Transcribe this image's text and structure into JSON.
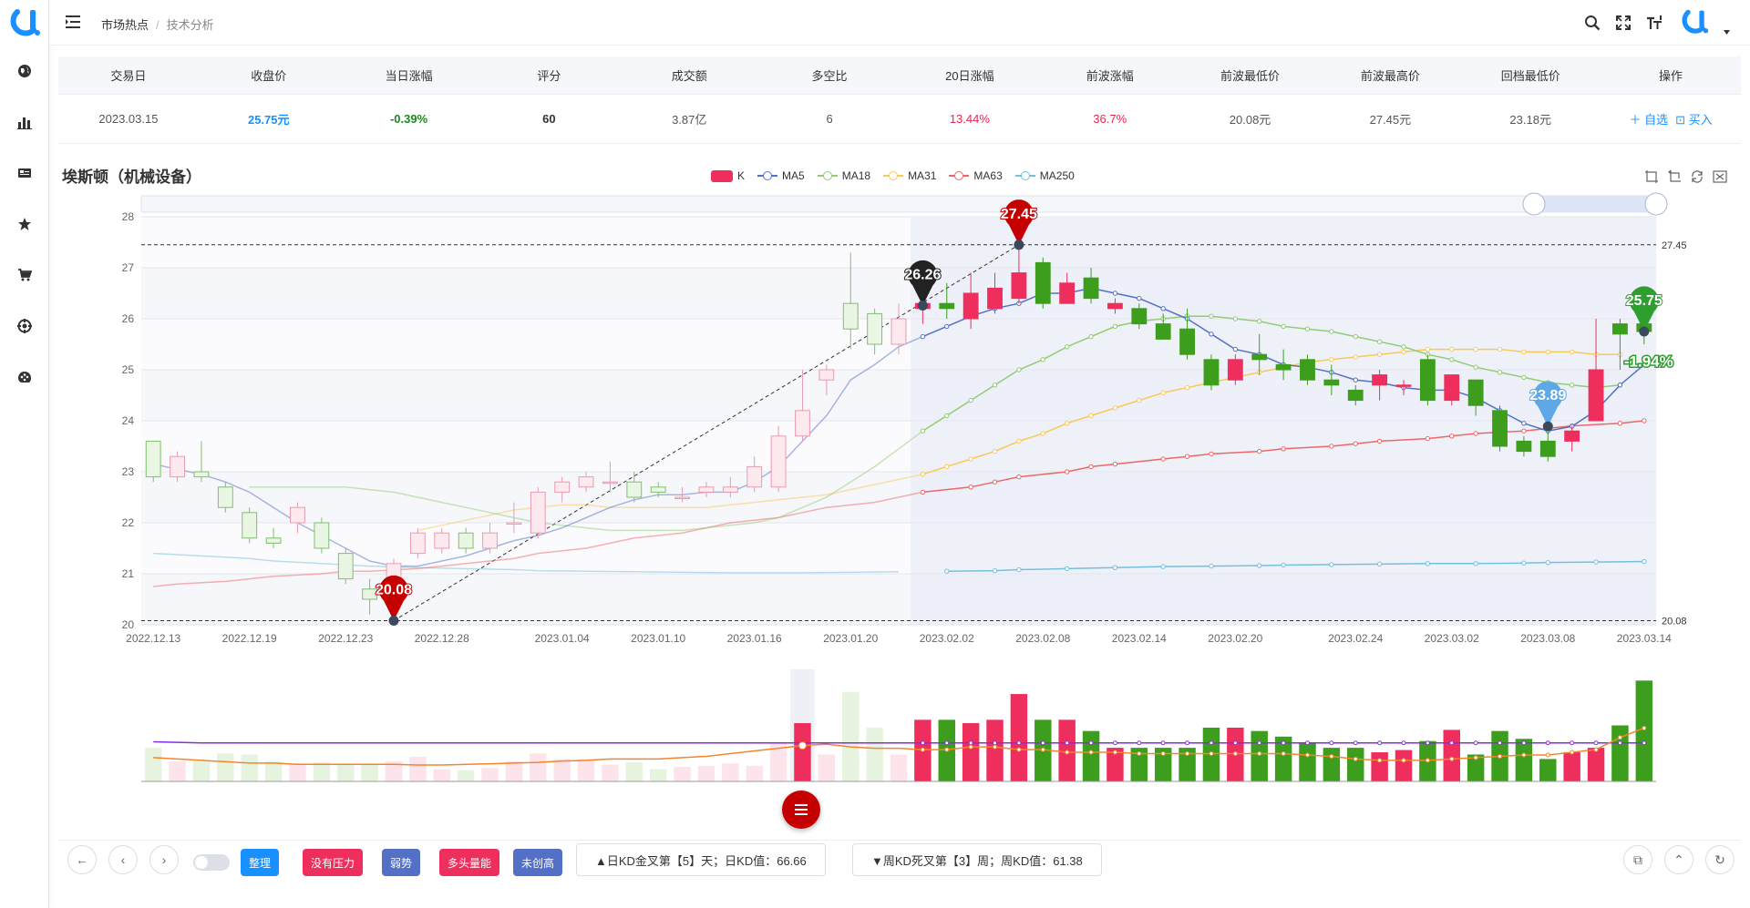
{
  "nav": {
    "breadcrumb_home": "市场热点",
    "breadcrumb_sep": "/",
    "breadcrumb_current": "技术分析",
    "sidebar_icons": [
      "globe-icon",
      "bar-chart-icon",
      "image-icon",
      "star-icon",
      "cart-icon",
      "target-icon",
      "palette-icon"
    ],
    "top_icons": [
      "search-icon",
      "fullscreen-icon",
      "font-size-icon",
      "user-logo-icon"
    ]
  },
  "summary": {
    "headers": [
      "交易日",
      "收盘价",
      "当日涨幅",
      "评分",
      "成交额",
      "多空比",
      "20日涨幅",
      "前波涨幅",
      "前波最低价",
      "前波最高价",
      "回档最低价",
      "操作"
    ],
    "row": [
      "2023.03.15",
      "25.75元",
      "-0.39%",
      "60",
      "3.87亿",
      "6",
      "13.44%",
      "36.7%",
      "20.08元",
      "27.45元",
      "23.18元"
    ],
    "action_add": "＋ 自选",
    "action_buy": "买入"
  },
  "chart_title": "埃斯顿（机械设备）",
  "legend": [
    {
      "name": "K",
      "color": "#ee2e5d"
    },
    {
      "name": "MA5",
      "color": "#5470c6"
    },
    {
      "name": "MA18",
      "color": "#91cc75"
    },
    {
      "name": "MA31",
      "color": "#fac858"
    },
    {
      "name": "MA63",
      "color": "#ee6666"
    },
    {
      "name": "MA250",
      "color": "#73c0de"
    }
  ],
  "chart_data": {
    "type": "candlestick",
    "ylim": [
      20,
      28
    ],
    "y_ticks": [
      "20",
      "21",
      "22",
      "23",
      "24",
      "25",
      "26",
      "27",
      "28"
    ],
    "x_tick_labels": [
      "2022.12.13",
      "2022.12.19",
      "2022.12.23",
      "2022.12.28",
      "2023.01.04",
      "2023.01.10",
      "2023.01.16",
      "2023.01.20",
      "2023.02.02",
      "2023.02.08",
      "2023.02.14",
      "2023.02.20",
      "2023.02.24",
      "2023.03.02",
      "2023.03.08",
      "2023.03.14"
    ],
    "high_line": "27.45",
    "low_line": "20.08",
    "markers": [
      {
        "label": "27.45",
        "index": 36,
        "value": 27.45,
        "color": "#c40000"
      },
      {
        "label": "26.26",
        "index": 32,
        "value": 26.26,
        "color": "#222222"
      },
      {
        "label": "20.08",
        "index": 10,
        "value": 20.08,
        "color": "#c40000"
      },
      {
        "label": "23.89",
        "index": 58,
        "value": 23.89,
        "color": "#5fa8e8"
      },
      {
        "label": "25.75",
        "index": 62,
        "value": 25.75,
        "color": "#2e9e2e"
      },
      {
        "label": "-1.94%",
        "index": 62,
        "value": 25.15,
        "color": "#2e9e2e"
      }
    ],
    "candles": [
      [
        23.6,
        22.9,
        23.6,
        22.8
      ],
      [
        22.9,
        23.3,
        23.4,
        22.8
      ],
      [
        23.0,
        22.9,
        23.6,
        22.8
      ],
      [
        22.7,
        22.3,
        22.8,
        22.2
      ],
      [
        22.2,
        21.7,
        22.3,
        21.6
      ],
      [
        21.7,
        21.6,
        21.9,
        21.5
      ],
      [
        22.0,
        22.3,
        22.4,
        21.8
      ],
      [
        22.0,
        21.5,
        22.1,
        21.4
      ],
      [
        21.4,
        20.9,
        21.5,
        20.8
      ],
      [
        20.7,
        20.5,
        20.9,
        20.2
      ],
      [
        20.6,
        21.2,
        21.3,
        20.1
      ],
      [
        21.4,
        21.8,
        21.9,
        21.3
      ],
      [
        21.5,
        21.8,
        21.9,
        21.4
      ],
      [
        21.8,
        21.5,
        21.9,
        21.4
      ],
      [
        21.5,
        21.8,
        22.0,
        21.4
      ],
      [
        22.0,
        22.0,
        22.4,
        21.8
      ],
      [
        21.8,
        22.6,
        22.7,
        21.7
      ],
      [
        22.6,
        22.8,
        22.9,
        22.4
      ],
      [
        22.7,
        22.9,
        23.0,
        22.6
      ],
      [
        22.8,
        22.8,
        23.2,
        22.6
      ],
      [
        22.8,
        22.5,
        23.0,
        22.4
      ],
      [
        22.7,
        22.6,
        22.8,
        22.5
      ],
      [
        22.5,
        22.5,
        22.7,
        22.4
      ],
      [
        22.6,
        22.7,
        22.8,
        22.5
      ],
      [
        22.6,
        22.7,
        22.9,
        22.5
      ],
      [
        22.7,
        23.1,
        23.3,
        22.6
      ],
      [
        22.7,
        23.7,
        23.9,
        22.6
      ],
      [
        23.7,
        24.2,
        25.0,
        23.6
      ],
      [
        24.8,
        25.0,
        25.1,
        24.5
      ],
      [
        26.3,
        25.8,
        27.3,
        25.4
      ],
      [
        26.1,
        25.5,
        26.2,
        25.3
      ],
      [
        25.5,
        26.0,
        26.3,
        25.3
      ],
      [
        26.2,
        26.3,
        26.7,
        25.9
      ],
      [
        26.3,
        26.2,
        26.7,
        26.0
      ],
      [
        26.0,
        26.5,
        26.9,
        25.8
      ],
      [
        26.2,
        26.6,
        26.9,
        26.1
      ],
      [
        26.4,
        26.9,
        27.45,
        26.3
      ],
      [
        27.1,
        26.3,
        27.2,
        26.2
      ],
      [
        26.3,
        26.7,
        26.9,
        26.3
      ],
      [
        26.8,
        26.4,
        27.0,
        26.3
      ],
      [
        26.2,
        26.3,
        26.4,
        26.1
      ],
      [
        26.2,
        25.9,
        26.3,
        25.8
      ],
      [
        25.9,
        25.6,
        26.1,
        25.6
      ],
      [
        25.8,
        25.3,
        26.2,
        25.2
      ],
      [
        25.2,
        24.7,
        25.3,
        24.6
      ],
      [
        24.8,
        25.2,
        25.3,
        24.7
      ],
      [
        25.3,
        25.2,
        25.7,
        24.9
      ],
      [
        25.1,
        25.0,
        25.4,
        24.8
      ],
      [
        25.2,
        24.8,
        25.3,
        24.7
      ],
      [
        24.8,
        24.7,
        25.1,
        24.5
      ],
      [
        24.6,
        24.4,
        24.7,
        24.3
      ],
      [
        24.7,
        24.9,
        25.0,
        24.4
      ],
      [
        24.7,
        24.7,
        24.8,
        24.5
      ],
      [
        25.2,
        24.4,
        25.3,
        24.3
      ],
      [
        24.4,
        24.9,
        24.9,
        24.3
      ],
      [
        24.8,
        24.3,
        24.8,
        24.1
      ],
      [
        24.2,
        23.5,
        24.3,
        23.4
      ],
      [
        23.6,
        23.4,
        23.7,
        23.3
      ],
      [
        23.6,
        23.3,
        23.8,
        23.2
      ],
      [
        23.6,
        23.8,
        23.9,
        23.4
      ],
      [
        24.0,
        25.0,
        26.0,
        24.0
      ],
      [
        25.9,
        25.7,
        26.0,
        25.0
      ],
      [
        25.9,
        25.75,
        26.2,
        25.5
      ]
    ],
    "ma5": [
      23.15,
      23.05,
      22.95,
      22.8,
      22.6,
      22.3,
      22.0,
      21.75,
      21.5,
      21.25,
      21.15,
      21.15,
      21.25,
      21.35,
      21.5,
      21.65,
      21.75,
      21.9,
      22.1,
      22.3,
      22.45,
      22.55,
      22.55,
      22.6,
      22.6,
      22.8,
      23.1,
      23.6,
      24.1,
      24.8,
      25.1,
      25.45,
      25.65,
      25.85,
      26.05,
      26.2,
      26.3,
      26.5,
      26.5,
      26.6,
      26.5,
      26.4,
      26.2,
      26.0,
      25.7,
      25.4,
      25.3,
      25.1,
      25.05,
      24.95,
      24.8,
      24.75,
      24.65,
      24.6,
      24.6,
      24.45,
      24.2,
      23.95,
      23.8,
      23.89,
      24.2,
      24.7,
      25.1
    ],
    "ma18": [
      22.7,
      22.7,
      22.7,
      22.7,
      22.7,
      22.65,
      22.6,
      22.5,
      22.4,
      22.3,
      22.2,
      22.1,
      22.0,
      21.95,
      21.9,
      21.85,
      21.85,
      21.85,
      21.85,
      21.9,
      21.95,
      22.0,
      22.1,
      22.3,
      22.5,
      22.8,
      23.1,
      23.45,
      23.8,
      24.1,
      24.4,
      24.7,
      25.0,
      25.2,
      25.45,
      25.65,
      25.85,
      25.95,
      26.0,
      26.05,
      26.05,
      26.0,
      25.95,
      25.85,
      25.8,
      25.75,
      25.65,
      25.55,
      25.45,
      25.3,
      25.2,
      25.05,
      24.95,
      24.85,
      24.75,
      24.7,
      24.65,
      24.7
    ],
    "ma31": [
      21.85,
      21.95,
      22.05,
      22.15,
      22.25,
      22.3,
      22.35,
      22.35,
      22.3,
      22.3,
      22.3,
      22.3,
      22.3,
      22.35,
      22.4,
      22.45,
      22.5,
      22.55,
      22.65,
      22.75,
      22.85,
      22.95,
      23.1,
      23.25,
      23.4,
      23.6,
      23.75,
      23.95,
      24.1,
      24.25,
      24.4,
      24.55,
      24.65,
      24.75,
      24.85,
      24.95,
      25.05,
      25.15,
      25.2,
      25.25,
      25.3,
      25.35,
      25.4,
      25.4,
      25.4,
      25.4,
      25.35,
      25.35,
      25.35,
      25.3,
      25.3
    ],
    "ma63": [
      20.75,
      20.8,
      20.85,
      20.9,
      20.95,
      21.0,
      21.05,
      21.05,
      21.1,
      21.15,
      21.2,
      21.3,
      21.4,
      21.5,
      21.6,
      21.7,
      21.8,
      21.9,
      22.0,
      22.1,
      22.2,
      22.3,
      22.4,
      22.5,
      22.6,
      22.7,
      22.8,
      22.9,
      23.0,
      23.1,
      23.15,
      23.25,
      23.3,
      23.35,
      23.4,
      23.45,
      23.5,
      23.55,
      23.6,
      23.65,
      23.7,
      23.75,
      23.8,
      23.85,
      23.9,
      23.95,
      24.0
    ],
    "ma250": [
      21.4,
      21.35,
      21.3,
      21.25,
      21.2,
      21.15,
      21.12,
      21.1,
      21.08,
      21.06,
      21.05,
      21.04,
      21.03,
      21.02,
      21.02,
      21.02,
      21.03,
      21.04,
      21.05,
      21.06,
      21.08,
      21.1,
      21.12,
      21.14,
      21.15,
      21.16,
      21.17,
      21.18,
      21.19,
      21.2,
      21.2,
      21.21,
      21.22,
      21.23,
      21.24
    ],
    "volume": {
      "values": [
        30,
        18,
        18,
        25,
        24,
        18,
        16,
        17,
        16,
        16,
        18,
        22,
        11,
        10,
        12,
        18,
        25,
        20,
        20,
        15,
        17,
        11,
        13,
        14,
        16,
        14,
        34,
        52,
        24,
        80,
        48,
        24,
        55,
        55,
        52,
        55,
        78,
        55,
        55,
        45,
        30,
        30,
        30,
        30,
        48,
        48,
        45,
        40,
        34,
        30,
        30,
        26,
        28,
        36,
        46,
        24,
        45,
        38,
        20,
        26,
        30,
        50,
        90,
        58,
        44
      ],
      "kd_line": [
        68,
        67,
        66,
        66,
        66,
        66,
        66,
        66,
        66,
        66,
        66,
        66,
        66,
        66,
        66,
        66,
        66,
        66,
        66,
        66,
        66,
        66,
        66,
        66,
        66,
        66,
        66,
        66,
        66,
        66,
        66,
        66,
        66,
        66,
        66,
        66,
        66,
        66,
        66,
        66,
        66,
        66,
        66,
        66,
        66,
        66,
        66,
        66,
        66,
        66,
        66,
        66,
        66,
        66,
        66,
        66,
        66,
        66,
        66,
        66,
        66,
        66,
        66,
        66,
        66
      ],
      "avg_line": [
        22,
        20,
        18,
        16,
        14,
        14,
        12,
        12,
        12,
        12,
        12,
        11,
        11,
        12,
        13,
        14,
        15,
        17,
        18,
        20,
        20,
        20,
        22,
        24,
        28,
        32,
        36,
        40,
        42,
        38,
        36,
        36,
        34,
        34,
        38,
        38,
        34,
        34,
        30,
        30,
        30,
        28,
        28,
        28,
        28,
        28,
        28,
        28,
        26,
        24,
        20,
        18,
        18,
        18,
        20,
        22,
        24,
        26,
        26,
        30,
        34,
        52,
        66,
        70
      ]
    }
  },
  "bottom": {
    "tags": [
      {
        "label": "整理",
        "color": "#1890ff"
      },
      {
        "label": "没有压力",
        "color": "#ee2e5d"
      },
      {
        "label": "弱势",
        "color": "#5470c6"
      },
      {
        "label": "多头量能",
        "color": "#ee2e5d"
      },
      {
        "label": "未创高",
        "color": "#5470c6"
      }
    ],
    "kd_day": "▲日KD金叉第【5】天；日KD值：66.66",
    "kd_week": "▼周KD死叉第【3】周；周KD值：61.38",
    "left_icons": [
      "back-arrow-icon",
      "prev-icon",
      "next-icon"
    ],
    "right_icons": [
      "copy-icon",
      "collapse-up-icon",
      "refresh-icon"
    ]
  }
}
